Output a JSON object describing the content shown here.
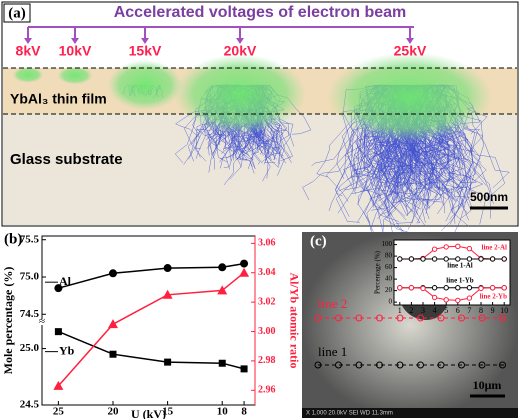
{
  "panel_a": {
    "label": "(a)",
    "title": "Accelerated voltages of electron beam",
    "voltages": [
      "8kV",
      "10kV",
      "15kV",
      "20kV",
      "25kV"
    ],
    "film": "YbAl₃ thin film",
    "substrate": "Glass substrate",
    "scale": "500nm"
  },
  "panel_b": {
    "label": "(b)"
  },
  "panel_c": {
    "label": "(c)",
    "line2": "line 2",
    "line1": "line 1",
    "scale": "10μm",
    "footer": "X 1,000   20.0kV  SEI   WD 11.3mm"
  },
  "chart_data": [
    {
      "type": "line",
      "x": [
        25,
        20,
        15,
        10,
        8
      ],
      "xlim": [
        26.5,
        7
      ],
      "xticks": [
        25,
        20,
        15,
        10,
        8
      ],
      "xlabel": "U (kV)",
      "ylabel": "Mole percentage (%)",
      "y2label": "Al/Yb atomic ratio",
      "ylim_upper": [
        74.45,
        75.55
      ],
      "yticks_upper": [
        {
          "value": 74.5,
          "label": "74.5"
        },
        {
          "value": 75,
          "label": "75.0"
        },
        {
          "value": 75.5,
          "label": "75.5"
        }
      ],
      "ylim_lower": [
        24.5,
        25.2
      ],
      "yticks_lower": [
        {
          "value": 24.5,
          "label": "24.5"
        },
        {
          "value": 25,
          "label": "25.0"
        }
      ],
      "y2lim": [
        2.95,
        3.065
      ],
      "y2ticks": [
        2.96,
        2.98,
        {
          "value": 3,
          "label": "3.00"
        },
        3.02,
        3.04,
        3.06
      ],
      "series": [
        {
          "name": "Al",
          "color": "#000000",
          "marker": "circle",
          "part": "upper",
          "values": [
            74.85,
            75.05,
            75.12,
            75.13,
            75.18
          ]
        },
        {
          "name": "Yb",
          "color": "#000000",
          "marker": "square",
          "part": "lower",
          "values": [
            25.15,
            24.95,
            24.88,
            24.87,
            24.82
          ]
        },
        {
          "name": "Al/Yb",
          "color": "#ff2040",
          "marker": "triangle",
          "axis": "y2",
          "values": [
            2.963,
            3.005,
            3.025,
            3.028,
            3.04
          ]
        }
      ]
    },
    {
      "type": "line",
      "x": [
        1,
        2,
        3,
        4,
        5,
        6,
        7,
        8,
        9,
        10
      ],
      "xlim": [
        0.5,
        10.5
      ],
      "xticks": [
        1,
        2,
        3,
        4,
        5,
        6,
        7,
        8,
        9,
        10
      ],
      "ylabel": "Percentage (%)",
      "ylim": [
        -5,
        108
      ],
      "yticks": [
        0,
        20,
        40,
        60,
        80,
        100
      ],
      "series": [
        {
          "name": "line 2-Al",
          "color": "#ff2040",
          "values": [
            75,
            75,
            76,
            92,
            96,
            97,
            93,
            76,
            75,
            75
          ]
        },
        {
          "name": "line 1-Al",
          "color": "#000000",
          "values": [
            75,
            75,
            75,
            75,
            75,
            75,
            75,
            75,
            75,
            75
          ]
        },
        {
          "name": "line 1-Yb",
          "color": "#000000",
          "values": [
            25,
            25,
            25,
            25,
            25,
            25,
            25,
            25,
            25,
            25
          ]
        },
        {
          "name": "line 2-Yb",
          "color": "#ff2040",
          "values": [
            25,
            25,
            24,
            8,
            4,
            3,
            7,
            24,
            25,
            25
          ]
        }
      ]
    }
  ]
}
